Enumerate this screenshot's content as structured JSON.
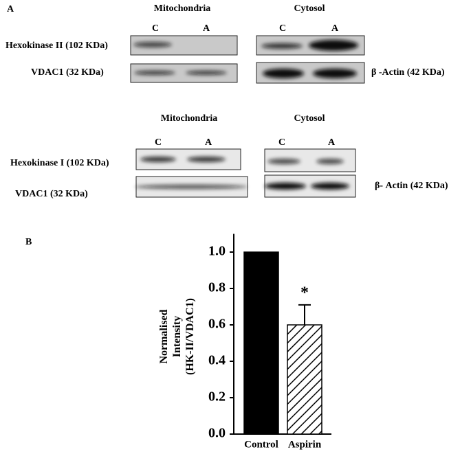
{
  "panel_a": {
    "label": "A",
    "block_1": {
      "mito_header": "Mitochondria",
      "cyto_header": "Cytosol",
      "mito_lanes": [
        "C",
        "A"
      ],
      "cyto_lanes": [
        "C",
        "A"
      ],
      "row_1_label": "Hexokinase II (102 KDa)",
      "row_2_label": "VDAC1 (32 KDa)",
      "loading_label": "β -Actin  (42 KDa)"
    },
    "block_2": {
      "mito_header": "Mitochondria",
      "cyto_header": "Cytosol",
      "mito_lanes": [
        "C",
        "A"
      ],
      "cyto_lanes": [
        "C",
        "A"
      ],
      "row_1_label": "Hexokinase I (102 KDa)",
      "row_2_label": "VDAC1 (32 KDa)",
      "loading_label": "β- Actin  (42 KDa)"
    }
  },
  "panel_b_label": "B",
  "chart_data": {
    "type": "bar",
    "ylabel": [
      "Normalised",
      "Intensity",
      "(HK-II/VDAC1)"
    ],
    "categories": [
      "Control",
      "Aspirin"
    ],
    "values": [
      1.0,
      0.6
    ],
    "errors": [
      null,
      0.11
    ],
    "colors": [
      "#000000",
      "#ffffff"
    ],
    "hatch": [
      false,
      true
    ],
    "annotation": "*",
    "ylim": [
      0,
      1.1
    ],
    "yticks": [
      {
        "value": 0,
        "label": "0.0"
      },
      0.2,
      0.4,
      0.6,
      0.8,
      {
        "value": 1,
        "label": "1.0"
      }
    ]
  }
}
